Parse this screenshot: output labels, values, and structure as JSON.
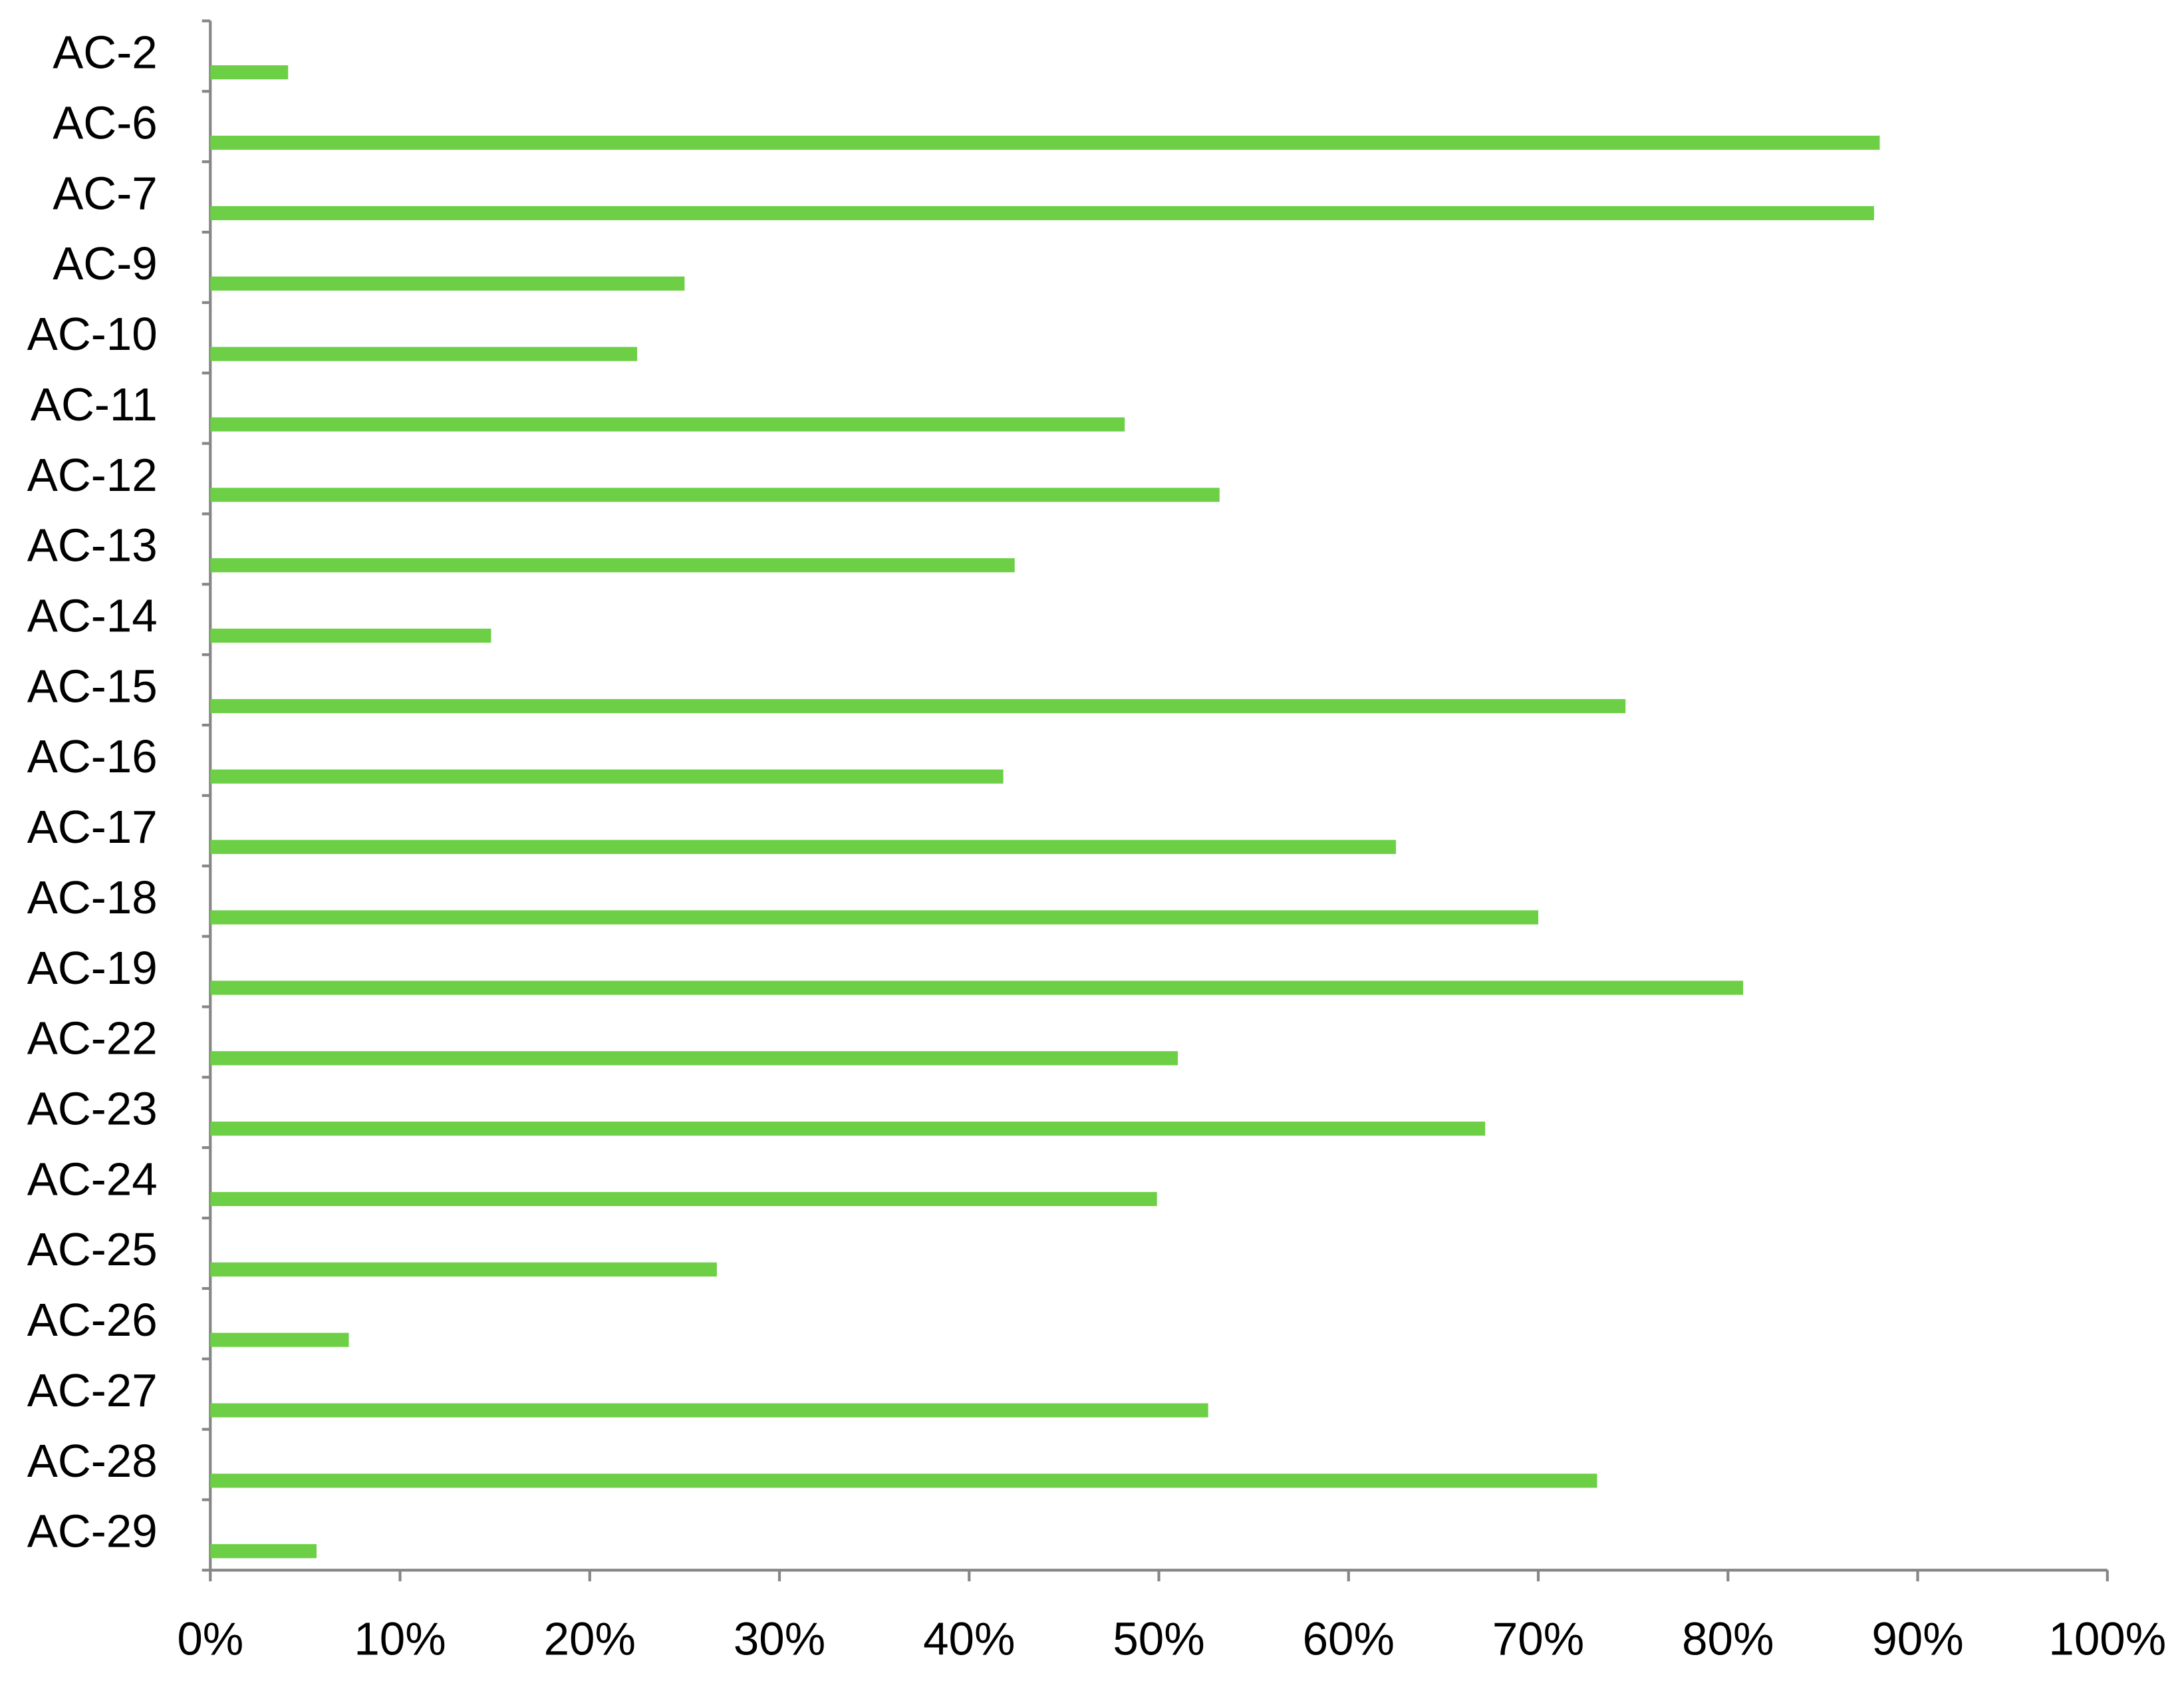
{
  "chart_data": {
    "type": "bar",
    "orientation": "horizontal",
    "categories": [
      "AC-2",
      "AC-6",
      "AC-7",
      "AC-9",
      "AC-10",
      "AC-11",
      "AC-12",
      "AC-13",
      "AC-14",
      "AC-15",
      "AC-16",
      "AC-17",
      "AC-18",
      "AC-19",
      "AC-22",
      "AC-23",
      "AC-24",
      "AC-25",
      "AC-26",
      "AC-27",
      "AC-28",
      "AC-29"
    ],
    "values": [
      4.1,
      88.0,
      87.7,
      25.0,
      22.5,
      48.2,
      53.2,
      42.4,
      14.8,
      74.6,
      41.8,
      62.5,
      70.0,
      80.8,
      51.0,
      67.2,
      49.9,
      26.7,
      7.3,
      52.6,
      73.1,
      5.6
    ],
    "color": "#6ccf45",
    "xlim": [
      0,
      100
    ],
    "xticks": [
      {
        "value": 0,
        "label": "0%"
      },
      {
        "value": 10,
        "label": "10%"
      },
      {
        "value": 20,
        "label": "20%"
      },
      {
        "value": 30,
        "label": "30%"
      },
      {
        "value": 40,
        "label": "40%"
      },
      {
        "value": 50,
        "label": "50%"
      },
      {
        "value": 60,
        "label": "60%"
      },
      {
        "value": 70,
        "label": "70%"
      },
      {
        "value": 80,
        "label": "80%"
      },
      {
        "value": 90,
        "label": "90%"
      },
      {
        "value": 100,
        "label": "100%"
      }
    ],
    "grid": false
  }
}
